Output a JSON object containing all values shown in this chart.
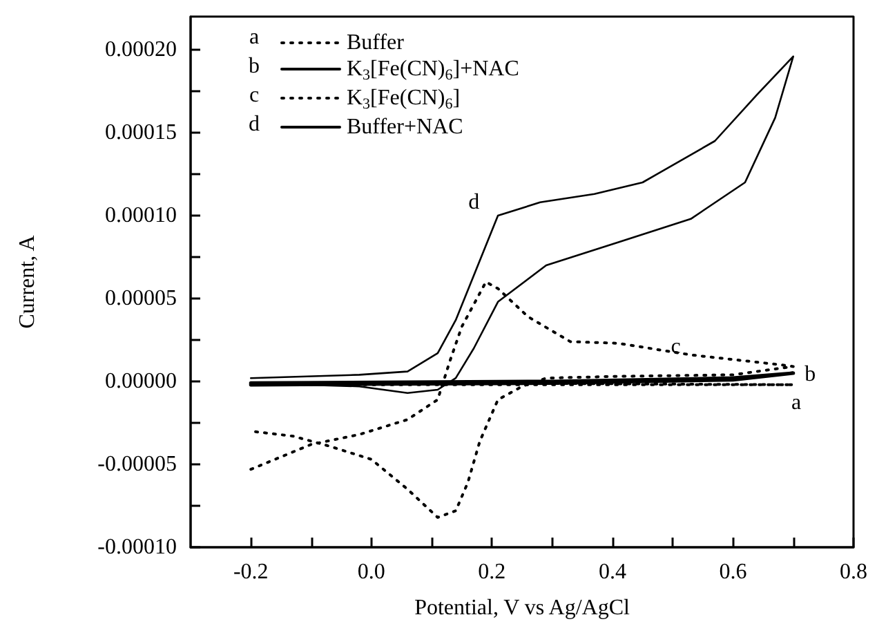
{
  "chart_data": {
    "type": "line",
    "xlabel": "Potential, V vs Ag/AgCl",
    "ylabel": "Current, A",
    "legend": "top left",
    "marker": "none",
    "xlim": [
      -0.3,
      0.8
    ],
    "xticks": [
      {
        "value": -0.2,
        "label": "-0.2"
      },
      {
        "value": -0.1,
        "label": null
      },
      {
        "value": 0,
        "label": "0.0"
      },
      {
        "value": 0.1,
        "label": null
      },
      {
        "value": 0.2,
        "label": "0.2"
      },
      {
        "value": 0.3,
        "label": null
      },
      {
        "value": 0.4,
        "label": "0.4"
      },
      {
        "value": 0.5,
        "label": null
      },
      {
        "value": 0.6,
        "label": "0.6"
      },
      {
        "value": 0.7,
        "label": null
      },
      {
        "value": 0.8,
        "label": "0.8"
      }
    ],
    "ylim": [
      -0.0001,
      0.00022
    ],
    "yticks": [
      {
        "value": -0.0001,
        "label": "-0.00010"
      },
      {
        "value": -7.5e-05,
        "label": null
      },
      {
        "value": -5e-05,
        "label": "-0.00005"
      },
      {
        "value": -2.5e-05,
        "label": null
      },
      {
        "value": 0,
        "label": "0.00000"
      },
      {
        "value": 2.5e-05,
        "label": null
      },
      {
        "value": 5e-05,
        "label": "0.00005"
      },
      {
        "value": 7.5e-05,
        "label": null
      },
      {
        "value": 0.0001,
        "label": "0.00010"
      },
      {
        "value": 0.000125,
        "label": null
      },
      {
        "value": 0.00015,
        "label": "0.00015"
      },
      {
        "value": 0.000175,
        "label": null
      },
      {
        "value": 0.0002,
        "label": "0.00020"
      }
    ],
    "series": [
      {
        "name": "Buffer",
        "color": "#000000",
        "line_style": "dotted",
        "x": [
          -0.2,
          0.2,
          0.7,
          0.2,
          -0.2
        ],
        "values": [
          -1e-06,
          -1e-06,
          -2e-06,
          -2e-06,
          -2e-06
        ]
      },
      {
        "name": "K$_{3}$[Fe(CN)$_{6}$]+NAC",
        "color": "#000000",
        "line_style": "solid",
        "x": [
          -0.2,
          0.3,
          0.6,
          0.7,
          0.6,
          0.3,
          -0.2
        ],
        "values": [
          -1e-06,
          0,
          2e-06,
          5e-06,
          1e-06,
          -1e-06,
          -2e-06
        ]
      },
      {
        "name": "K$_{3}$[Fe(CN)$_{6}$]",
        "color": "#000000",
        "line_style": "dotted",
        "x": [
          -0.2,
          -0.1,
          -0.02,
          0.06,
          0.11,
          0.13,
          0.15,
          0.19,
          0.21,
          0.26,
          0.33,
          0.41,
          0.53,
          0.68,
          0.7,
          0.6,
          0.4,
          0.29,
          0.25,
          0.21,
          0.18,
          0.16,
          0.14,
          0.11,
          0.06,
          0,
          -0.07,
          -0.13,
          -0.2
        ],
        "values": [
          -5.3e-05,
          -3.8e-05,
          -3.2e-05,
          -2.3e-05,
          -1.1e-05,
          1.2e-05,
          3.3e-05,
          6e-05,
          5.6e-05,
          3.9e-05,
          2.4e-05,
          2.3e-05,
          1.6e-05,
          1e-05,
          9e-06,
          4e-06,
          3e-06,
          2e-06,
          -3e-06,
          -1.1e-05,
          -3.6e-05,
          -6.1e-05,
          -7.8e-05,
          -8.2e-05,
          -6.5e-05,
          -4.7e-05,
          -3.9e-05,
          -3.3e-05,
          -3e-05
        ]
      },
      {
        "name": "Buffer+NAC",
        "color": "#000000",
        "line_style": "solid",
        "x": [
          -0.2,
          -0.02,
          0.06,
          0.11,
          0.14,
          0.17,
          0.21,
          0.28,
          0.37,
          0.45,
          0.57,
          0.64,
          0.7,
          0.67,
          0.62,
          0.53,
          0.41,
          0.29,
          0.21,
          0.17,
          0.14,
          0.11,
          0.06,
          -0.02,
          -0.2
        ],
        "values": [
          2e-06,
          4e-06,
          6e-06,
          1.7e-05,
          3.7e-05,
          6.4e-05,
          0.0001,
          0.000108,
          0.000113,
          0.00012,
          0.000145,
          0.000173,
          0.000196,
          0.000159,
          0.00012,
          9.8e-05,
          8.4e-05,
          7e-05,
          4.8e-05,
          2e-05,
          2e-06,
          -5e-06,
          -7e-06,
          -3e-06,
          -1e-06
        ]
      }
    ],
    "annotations": [
      "a",
      "b",
      "c",
      "d"
    ]
  }
}
